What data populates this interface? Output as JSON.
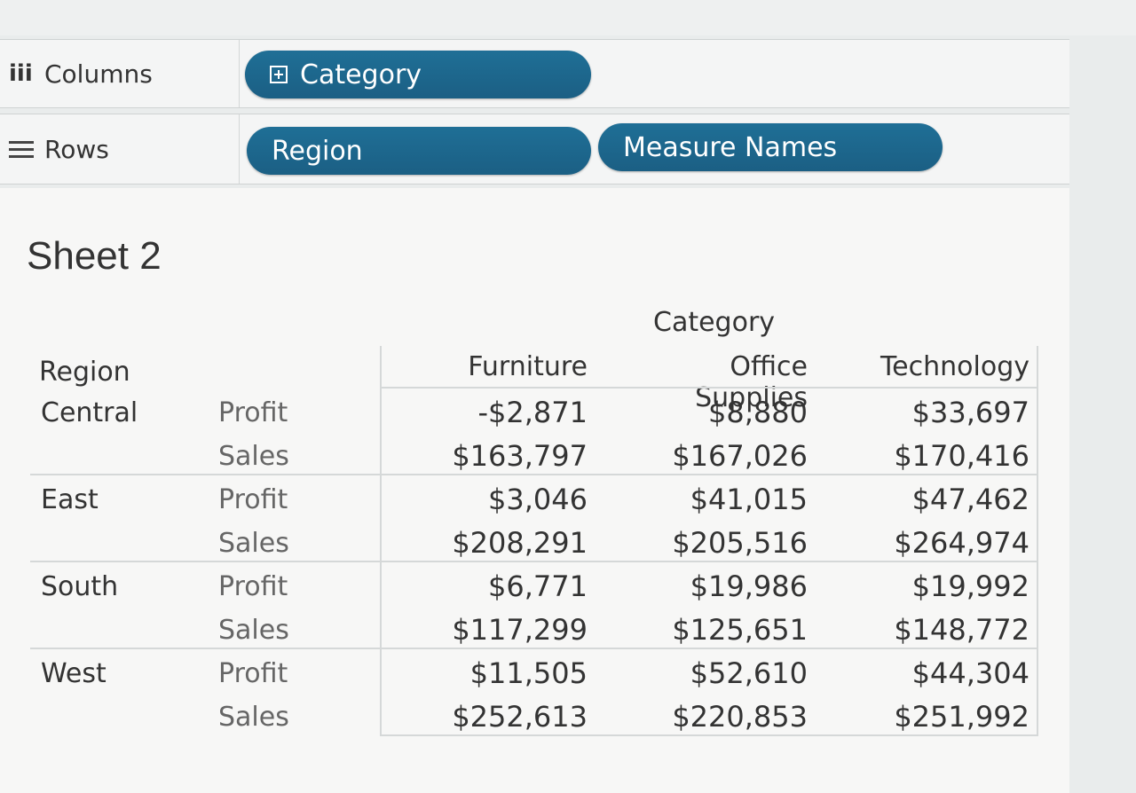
{
  "shelves": {
    "columns_label": "Columns",
    "rows_label": "Rows",
    "columns_pills": [
      "Category"
    ],
    "rows_pills": [
      "Region",
      "Measure Names"
    ]
  },
  "sheet": {
    "title": "Sheet 2",
    "column_group_header": "Category",
    "row_header": "Region",
    "column_headers": [
      "Furniture",
      "Office Supplies",
      "Technology"
    ]
  },
  "table": {
    "rows": [
      {
        "region": "Central",
        "measure": "Profit",
        "values": [
          "-$2,871",
          "$8,880",
          "$33,697"
        ]
      },
      {
        "region": "",
        "measure": "Sales",
        "values": [
          "$163,797",
          "$167,026",
          "$170,416"
        ]
      },
      {
        "region": "East",
        "measure": "Profit",
        "values": [
          "$3,046",
          "$41,015",
          "$47,462"
        ]
      },
      {
        "region": "",
        "measure": "Sales",
        "values": [
          "$208,291",
          "$205,516",
          "$264,974"
        ]
      },
      {
        "region": "South",
        "measure": "Profit",
        "values": [
          "$6,771",
          "$19,986",
          "$19,992"
        ]
      },
      {
        "region": "",
        "measure": "Sales",
        "values": [
          "$117,299",
          "$125,651",
          "$148,772"
        ]
      },
      {
        "region": "West",
        "measure": "Profit",
        "values": [
          "$11,505",
          "$52,610",
          "$44,304"
        ]
      },
      {
        "region": "",
        "measure": "Sales",
        "values": [
          "$252,613",
          "$220,853",
          "$251,992"
        ]
      }
    ]
  },
  "colors": {
    "pill": "#1f6f96",
    "background": "#f7f7f6"
  }
}
